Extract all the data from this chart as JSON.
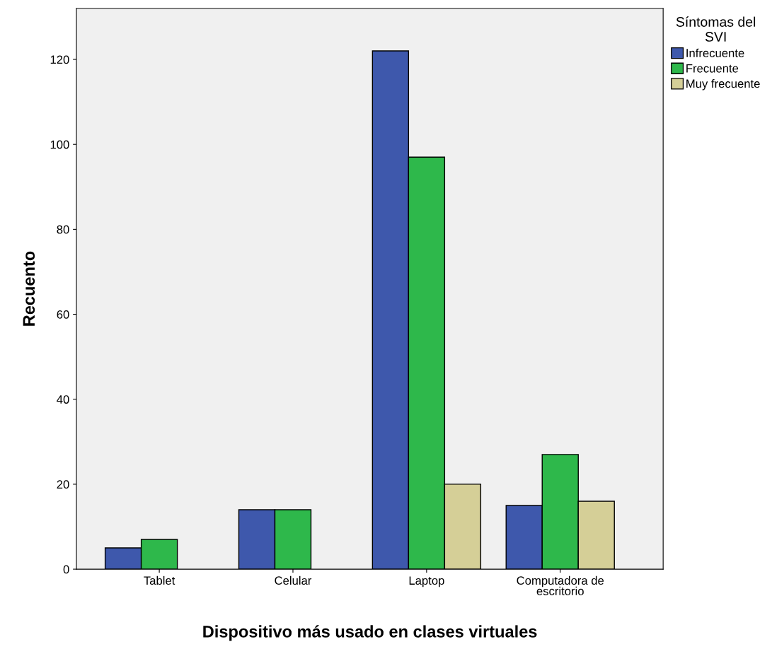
{
  "chart_data": {
    "type": "bar",
    "xlabel": "Dispositivo más usado en clases virtuales",
    "ylabel": "Recuento",
    "legend_title": "Síntomas del\nSVI",
    "categories": [
      "Tablet",
      "Celular",
      "Laptop",
      "Computadora de\nescritorio"
    ],
    "series": [
      {
        "name": "Infrecuente",
        "color": "#3e58ac",
        "values": [
          5,
          14,
          122,
          15
        ]
      },
      {
        "name": "Frecuente",
        "color": "#2eb84b",
        "values": [
          7,
          14,
          97,
          27
        ]
      },
      {
        "name": "Muy frecuente",
        "color": "#d5cf97",
        "values": [
          null,
          null,
          20,
          16
        ]
      }
    ],
    "ylim": [
      0,
      132
    ],
    "yticks": [
      0,
      20,
      40,
      60,
      80,
      100,
      120
    ],
    "grid": false,
    "legend": "top right"
  }
}
